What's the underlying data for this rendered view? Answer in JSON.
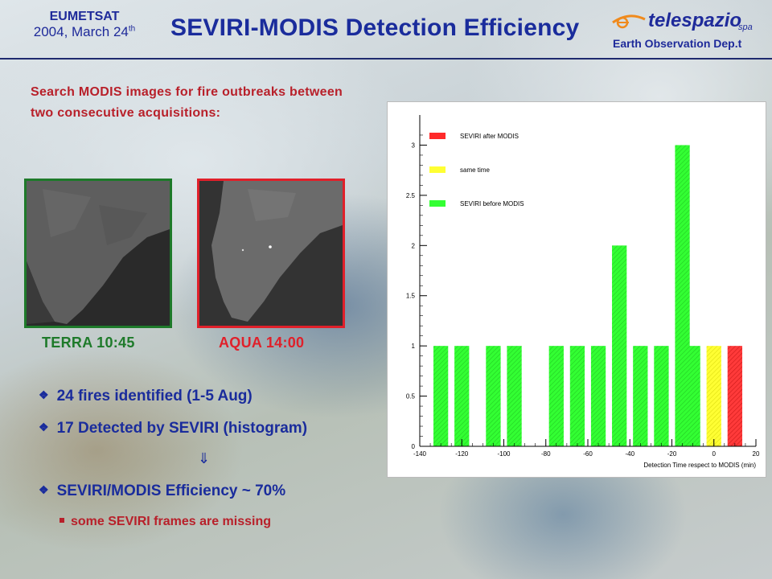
{
  "header": {
    "org_name": "EUMETSAT",
    "date_prefix": "2004, March 24",
    "date_suffix": "th",
    "title": "SEVIRI-MODIS  Detection Efficiency",
    "logo_word": "telespazio",
    "logo_spa": "spa",
    "department": "Earth Observation Dep.t"
  },
  "intro": {
    "text": "Search MODIS images for fire outbreaks between two consecutive acquisitions:"
  },
  "images": [
    {
      "label": "TERRA 10:45",
      "border_color": "#1e7a2a"
    },
    {
      "label": "AQUA 14:00",
      "border_color": "#e0202a"
    }
  ],
  "bullets": {
    "item1": "24 fires identified (1-5 Aug)",
    "item2": "17 Detected by SEVIRI (histogram)",
    "arrow": "⇓",
    "item3": "SEVIRI/MODIS Efficiency ~ 70%",
    "sub1": "some SEVIRI frames are missing"
  },
  "chart_data": {
    "type": "bar",
    "title": "",
    "xlabel": "Detection Time respect to MODIS (min)",
    "ylabel": "",
    "xlim": [
      -140,
      20
    ],
    "ylim": [
      0,
      3.3
    ],
    "xticks": [
      -140,
      -120,
      -100,
      -80,
      -60,
      -40,
      -20,
      0,
      20
    ],
    "yticks": [
      0,
      0.5,
      1,
      1.5,
      2,
      2.5,
      3
    ],
    "grid": false,
    "legend_position": "top-left",
    "series": [
      {
        "name": "SEVIRI after MODIS",
        "color": "#ff2a2a",
        "bars": [
          {
            "x": 10,
            "value": 1
          }
        ]
      },
      {
        "name": "same time",
        "color": "#ffff33",
        "bars": [
          {
            "x": 0,
            "value": 1
          }
        ]
      },
      {
        "name": "SEVIRI before MODIS",
        "color": "#33ff33",
        "bars": [
          {
            "x": -130,
            "value": 1
          },
          {
            "x": -120,
            "value": 1
          },
          {
            "x": -105,
            "value": 1
          },
          {
            "x": -95,
            "value": 1
          },
          {
            "x": -75,
            "value": 1
          },
          {
            "x": -65,
            "value": 1
          },
          {
            "x": -55,
            "value": 1
          },
          {
            "x": -45,
            "value": 2
          },
          {
            "x": -35,
            "value": 1
          },
          {
            "x": -25,
            "value": 1
          },
          {
            "x": -15,
            "value": 3
          },
          {
            "x": 0,
            "value": 1
          }
        ]
      }
    ],
    "bin_width": 7
  }
}
